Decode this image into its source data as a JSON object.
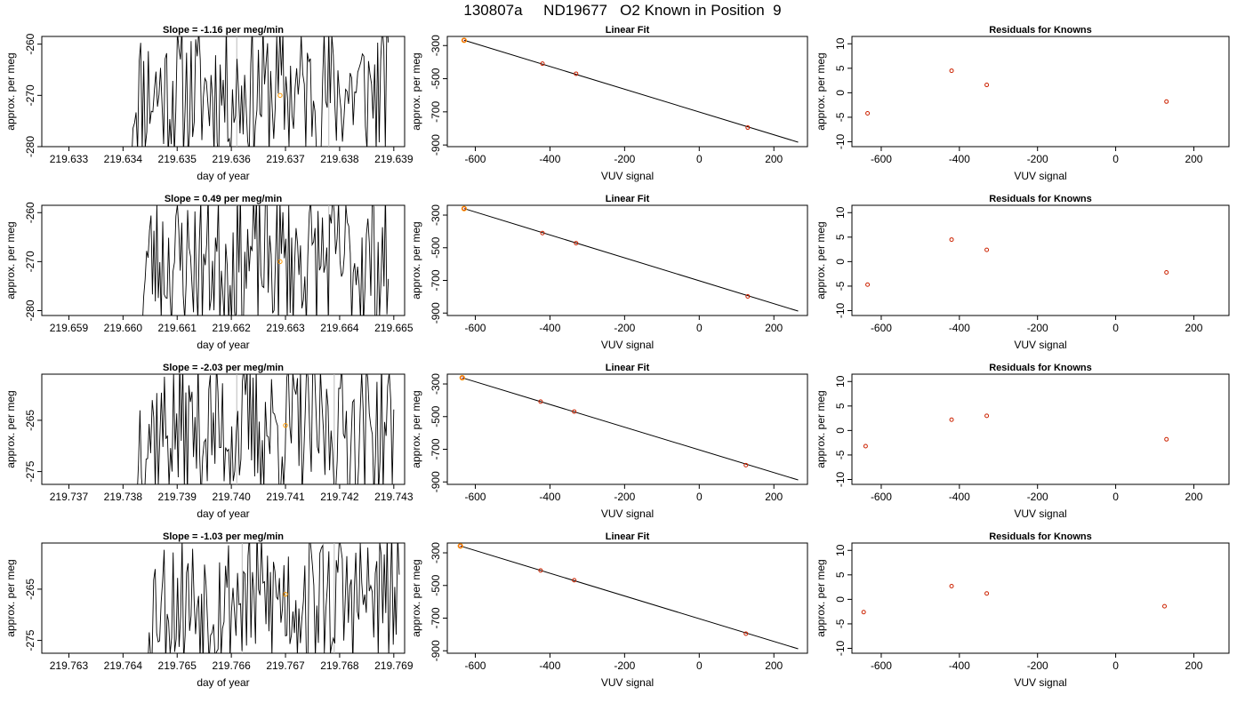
{
  "window": {
    "title": "130807a     ND19677   O2 Known in Position  9"
  },
  "colors": {
    "line": "#000000",
    "known_marker": "#ff9900",
    "fit_marker": "#cc2200",
    "residual_marker": "#cc2200",
    "separator": "#bbbbbb"
  },
  "chart_data": [
    {
      "type": "line",
      "title": "Slope =  -1.16  per meg/min",
      "xlabel": "day of year",
      "ylabel": "approx. per meg",
      "xlim": [
        219.6325,
        219.6392
      ],
      "ylim": [
        -280,
        -258.5
      ],
      "xticks": [
        "219.633",
        "219.634",
        "219.635",
        "219.636",
        "219.637",
        "219.638",
        "219.639"
      ],
      "yticks": [
        "-260",
        "-270",
        "-280"
      ],
      "vlines": [
        219.6361,
        219.6378
      ],
      "known_point": {
        "x": 219.6369,
        "y": -270
      },
      "trace_start": 219.6341,
      "trace_end": 219.6389,
      "seed": 11
    },
    {
      "type": "scatter",
      "title": "Linear Fit",
      "xlabel": "VUV signal",
      "ylabel": "approx. per meg",
      "xlim": [
        -675,
        290
      ],
      "ylim": [
        -910,
        -245
      ],
      "xticks": [
        "-600",
        "-400",
        "-200",
        "0",
        "200"
      ],
      "yticks": [
        "-300",
        "-500",
        "-700",
        "-900"
      ],
      "points": [
        {
          "x": -630,
          "y": -268
        },
        {
          "x": -420,
          "y": -409
        },
        {
          "x": -330,
          "y": -470
        },
        {
          "x": 130,
          "y": -795
        }
      ],
      "fit_line": [
        {
          "x": -630,
          "y": -268
        },
        {
          "x": 265,
          "y": -883
        }
      ]
    },
    {
      "type": "scatter",
      "title": "Residuals for Knowns",
      "xlabel": "VUV signal",
      "ylabel": "approx. per meg",
      "xlim": [
        -675,
        290
      ],
      "ylim": [
        -11,
        11.5
      ],
      "xticks": [
        "-600",
        "-400",
        "-200",
        "0",
        "200"
      ],
      "yticks": [
        "10",
        "5",
        "0",
        "-5",
        "-10"
      ],
      "points": [
        {
          "x": -635,
          "y": -4.2
        },
        {
          "x": -420,
          "y": 4.5
        },
        {
          "x": -330,
          "y": 1.6
        },
        {
          "x": 130,
          "y": -1.8
        }
      ]
    },
    {
      "type": "line",
      "title": "Slope =  0.49  per meg/min",
      "xlabel": "day of year",
      "ylabel": "approx. per meg",
      "xlim": [
        219.6585,
        219.6652
      ],
      "ylim": [
        -281,
        -258.5
      ],
      "xticks": [
        "219.659",
        "219.660",
        "219.661",
        "219.662",
        "219.663",
        "219.664",
        "219.665"
      ],
      "yticks": [
        "-260",
        "-270",
        "-280"
      ],
      "vlines": [
        219.6621,
        219.6638
      ],
      "known_point": {
        "x": 219.6629,
        "y": -270
      },
      "trace_start": 219.6603,
      "trace_end": 219.6649,
      "seed": 23
    },
    {
      "type": "scatter",
      "title": "Linear Fit",
      "xlabel": "VUV signal",
      "ylabel": "approx. per meg",
      "xlim": [
        -675,
        290
      ],
      "ylim": [
        -915,
        -240
      ],
      "xticks": [
        "-600",
        "-400",
        "-200",
        "0",
        "200"
      ],
      "yticks": [
        "-300",
        "-500",
        "-700",
        "-900"
      ],
      "points": [
        {
          "x": -630,
          "y": -260
        },
        {
          "x": -420,
          "y": -410
        },
        {
          "x": -330,
          "y": -472
        },
        {
          "x": 130,
          "y": -798
        }
      ],
      "fit_line": [
        {
          "x": -630,
          "y": -260
        },
        {
          "x": 265,
          "y": -888
        }
      ]
    },
    {
      "type": "scatter",
      "title": "Residuals for Knowns",
      "xlabel": "VUV signal",
      "ylabel": "approx. per meg",
      "xlim": [
        -675,
        290
      ],
      "ylim": [
        -11,
        11.5
      ],
      "xticks": [
        "-600",
        "-400",
        "-200",
        "0",
        "200"
      ],
      "yticks": [
        "10",
        "5",
        "0",
        "-5",
        "-10"
      ],
      "points": [
        {
          "x": -635,
          "y": -4.7
        },
        {
          "x": -420,
          "y": 4.5
        },
        {
          "x": -330,
          "y": 2.4
        },
        {
          "x": 130,
          "y": -2.2
        }
      ]
    },
    {
      "type": "line",
      "title": "Slope =  -2.03  per meg/min",
      "xlabel": "day of year",
      "ylabel": "approx. per meg",
      "xlim": [
        219.7365,
        219.7432
      ],
      "ylim": [
        -277.5,
        -256
      ],
      "xticks": [
        "219.737",
        "219.738",
        "219.739",
        "219.740",
        "219.741",
        "219.742",
        "219.743"
      ],
      "yticks": [
        "-265",
        "-275"
      ],
      "vlines": [
        219.7401,
        219.7419
      ],
      "known_point": {
        "x": 219.741,
        "y": -266
      },
      "trace_start": 219.7382,
      "trace_end": 219.743,
      "seed": 37
    },
    {
      "type": "scatter",
      "title": "Linear Fit",
      "xlabel": "VUV signal",
      "ylabel": "approx. per meg",
      "xlim": [
        -675,
        290
      ],
      "ylim": [
        -915,
        -240
      ],
      "xticks": [
        "-600",
        "-400",
        "-200",
        "0",
        "200"
      ],
      "yticks": [
        "-300",
        "-500",
        "-700",
        "-900"
      ],
      "points": [
        {
          "x": -635,
          "y": -262
        },
        {
          "x": -425,
          "y": -408
        },
        {
          "x": -335,
          "y": -469
        },
        {
          "x": 125,
          "y": -797
        }
      ],
      "fit_line": [
        {
          "x": -635,
          "y": -262
        },
        {
          "x": 265,
          "y": -888
        }
      ]
    },
    {
      "type": "scatter",
      "title": "Residuals for Knowns",
      "xlabel": "VUV signal",
      "ylabel": "approx. per meg",
      "xlim": [
        -675,
        290
      ],
      "ylim": [
        -11,
        11.5
      ],
      "xticks": [
        "-600",
        "-400",
        "-200",
        "0",
        "200"
      ],
      "yticks": [
        "10",
        "5",
        "0",
        "-5",
        "-10"
      ],
      "points": [
        {
          "x": -640,
          "y": -3.2
        },
        {
          "x": -420,
          "y": 2.2
        },
        {
          "x": -330,
          "y": 3.0
        },
        {
          "x": 130,
          "y": -1.8
        }
      ]
    },
    {
      "type": "line",
      "title": "Slope =  -1.03  per meg/min",
      "xlabel": "day of year",
      "ylabel": "approx. per meg",
      "xlim": [
        219.7625,
        219.7692
      ],
      "ylim": [
        -277.5,
        -256
      ],
      "xticks": [
        "219.763",
        "219.764",
        "219.765",
        "219.766",
        "219.767",
        "219.768",
        "219.769"
      ],
      "yticks": [
        "-265",
        "-275"
      ],
      "vlines": [
        219.7662,
        219.7679
      ],
      "known_point": {
        "x": 219.767,
        "y": -266
      },
      "trace_start": 219.7644,
      "trace_end": 219.7691,
      "seed": 53
    },
    {
      "type": "scatter",
      "title": "Linear Fit",
      "xlabel": "VUV signal",
      "ylabel": "approx. per meg",
      "xlim": [
        -675,
        290
      ],
      "ylim": [
        -915,
        -240
      ],
      "xticks": [
        "-600",
        "-400",
        "-200",
        "0",
        "200"
      ],
      "yticks": [
        "-300",
        "-500",
        "-700",
        "-900"
      ],
      "points": [
        {
          "x": -640,
          "y": -258
        },
        {
          "x": -425,
          "y": -408
        },
        {
          "x": -335,
          "y": -468
        },
        {
          "x": 125,
          "y": -795
        }
      ],
      "fit_line": [
        {
          "x": -640,
          "y": -258
        },
        {
          "x": 265,
          "y": -888
        }
      ]
    },
    {
      "type": "scatter",
      "title": "Residuals for Knowns",
      "xlabel": "VUV signal",
      "ylabel": "approx. per meg",
      "xlim": [
        -675,
        290
      ],
      "ylim": [
        -11,
        11.5
      ],
      "xticks": [
        "-600",
        "-400",
        "-200",
        "0",
        "200"
      ],
      "yticks": [
        "10",
        "5",
        "0",
        "-5",
        "-10"
      ],
      "points": [
        {
          "x": -645,
          "y": -2.6
        },
        {
          "x": -420,
          "y": 2.7
        },
        {
          "x": -330,
          "y": 1.2
        },
        {
          "x": 125,
          "y": -1.4
        }
      ]
    }
  ]
}
